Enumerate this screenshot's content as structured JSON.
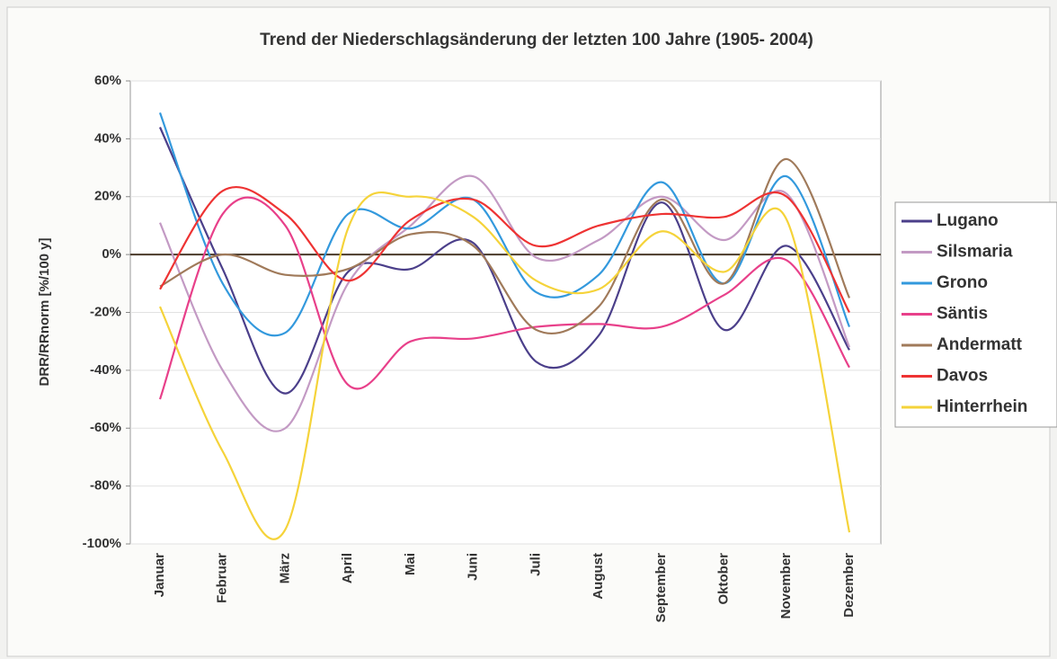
{
  "chart_data": {
    "type": "line",
    "title": "Trend der Niederschlagsänderung der letzten 100 Jahre (1905- 2004)",
    "y_label": "DRR/RRnorm [%/100 y]",
    "categories": [
      "Januar",
      "Februar",
      "März",
      "April",
      "Mai",
      "Juni",
      "Juli",
      "August",
      "September",
      "Oktober",
      "November",
      "Dezember"
    ],
    "ylim": [
      -100,
      60
    ],
    "yticks": [
      {
        "value": -100,
        "label": "-100%"
      },
      {
        "value": -80,
        "label": "-80%"
      },
      {
        "value": -60,
        "label": "-60%"
      },
      {
        "value": -40,
        "label": "-40%"
      },
      {
        "value": -20,
        "label": "-20%"
      },
      {
        "value": 0,
        "label": "0%"
      },
      {
        "value": 20,
        "label": "20%"
      },
      {
        "value": 40,
        "label": "40%"
      },
      {
        "value": 60,
        "label": "60%"
      }
    ],
    "grid": true,
    "legend": "right",
    "series": [
      {
        "name": "Lugano",
        "color": "#4b3f8a",
        "values": [
          44,
          -5,
          -48,
          -6,
          -5,
          4,
          -37,
          -28,
          18,
          -26,
          3,
          -33
        ]
      },
      {
        "name": "Silsmaria",
        "color": "#c39ac4",
        "values": [
          11,
          -40,
          -60,
          -10,
          10,
          27,
          -1,
          5,
          20,
          5,
          21,
          -32
        ]
      },
      {
        "name": "Grono",
        "color": "#3399dd",
        "values": [
          49,
          -10,
          -27,
          14,
          9,
          19,
          -13,
          -7,
          25,
          -10,
          27,
          -25
        ]
      },
      {
        "name": "Säntis",
        "color": "#e8408a",
        "values": [
          -50,
          14,
          10,
          -45,
          -30,
          -29,
          -25,
          -24,
          -25,
          -14,
          -2,
          -39
        ]
      },
      {
        "name": "Andermatt",
        "color": "#a07a5a",
        "values": [
          -11,
          0,
          -7,
          -5,
          7,
          3,
          -26,
          -18,
          19,
          -10,
          33,
          -15
        ]
      },
      {
        "name": "Davos",
        "color": "#ee3333",
        "values": [
          -12,
          22,
          14,
          -9,
          12,
          19,
          3,
          10,
          14,
          13,
          20,
          -20
        ]
      },
      {
        "name": "Hinterrhein",
        "color": "#f5d33a",
        "values": [
          -18,
          -68,
          -95,
          9,
          20,
          13,
          -9,
          -12,
          8,
          -6,
          12,
          -96
        ]
      }
    ]
  }
}
